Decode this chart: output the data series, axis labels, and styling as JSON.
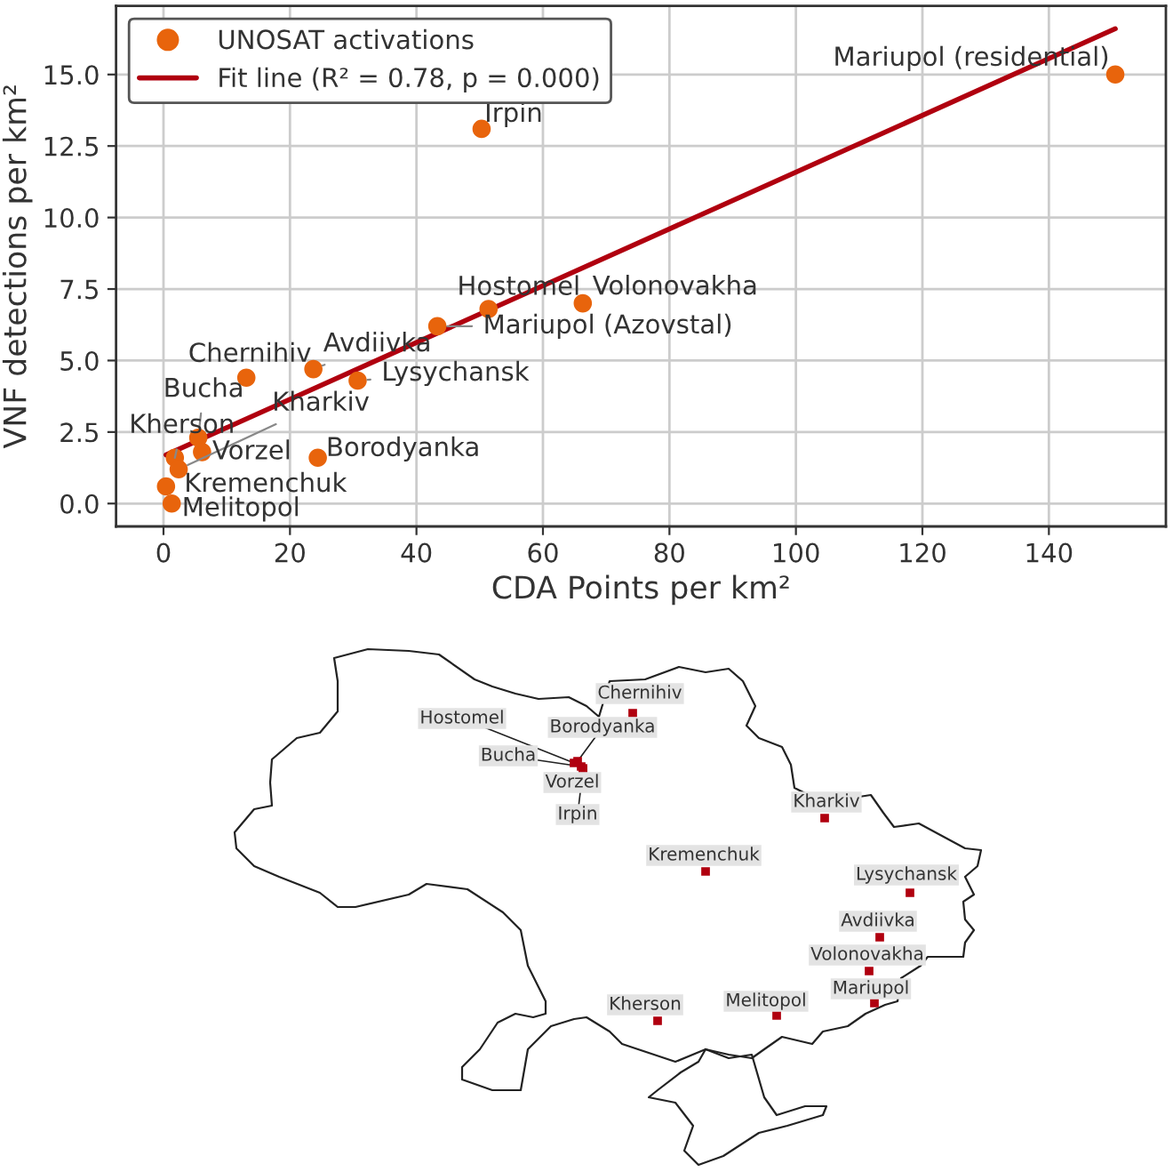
{
  "chart_data": [
    {
      "type": "scatter",
      "xlabel": "CDA Points per km²",
      "ylabel": "VNF detections per km²",
      "xlim": [
        -7.5,
        158.5
      ],
      "ylim": [
        -0.8,
        17.4
      ],
      "xticks": [
        0,
        20,
        40,
        60,
        80,
        100,
        120,
        140
      ],
      "yticks": [
        {
          "value": 0,
          "label": "0.0"
        },
        {
          "value": 2.5,
          "label": "2.5"
        },
        {
          "value": 5,
          "label": "5.0"
        },
        {
          "value": 7.5,
          "label": "7.5"
        },
        {
          "value": 10,
          "label": "10.0"
        },
        {
          "value": 12.5,
          "label": "12.5"
        },
        {
          "value": 15,
          "label": "15.0"
        }
      ],
      "grid": true,
      "legend": "top left",
      "series": [
        {
          "name": "UNOSAT activations",
          "type": "scatter",
          "marker": "circle",
          "color": "#e8640c",
          "x": [
            150.5,
            50.3,
            51.4,
            66.3,
            43.3,
            23.7,
            13.1,
            30.7,
            5.5,
            1.8,
            2.4,
            6.1,
            24.4,
            0.4,
            1.3
          ],
          "values": [
            15.0,
            13.1,
            6.8,
            7.0,
            6.2,
            4.7,
            4.4,
            4.3,
            2.3,
            1.6,
            1.2,
            1.8,
            1.6,
            0.6,
            0.0
          ]
        },
        {
          "name": "Fit line (R² = 0.78, p = 0.000)",
          "type": "line",
          "color": "#b0000f",
          "x": [
            0.4,
            150.5
          ],
          "values": [
            1.7,
            16.6
          ]
        }
      ],
      "annotations": [
        {
          "text": "Mariupol (residential)",
          "x": 150.5,
          "y": 15.0
        },
        {
          "text": "Irpin",
          "x": 50.3,
          "y": 13.1
        },
        {
          "text": "Hostomel",
          "x": 51.4,
          "y": 6.8
        },
        {
          "text": "Volonovakha",
          "x": 66.3,
          "y": 7.0
        },
        {
          "text": "Mariupol (Azovstal)",
          "x": 43.3,
          "y": 6.2
        },
        {
          "text": "Avdiivka",
          "x": 23.7,
          "y": 4.7
        },
        {
          "text": "Chernihiv",
          "x": 13.1,
          "y": 4.4
        },
        {
          "text": "Lysychansk",
          "x": 30.7,
          "y": 4.3
        },
        {
          "text": "Bucha",
          "x": 5.5,
          "y": 2.3
        },
        {
          "text": "Kherson",
          "x": 1.8,
          "y": 1.6
        },
        {
          "text": "Kharkiv",
          "x": 2.4,
          "y": 1.2
        },
        {
          "text": "Vorzel",
          "x": 6.1,
          "y": 1.8
        },
        {
          "text": "Borodyanka",
          "x": 24.4,
          "y": 1.6
        },
        {
          "text": "Kremenchuk",
          "x": 0.4,
          "y": 0.6
        },
        {
          "text": "Melitopol",
          "x": 1.3,
          "y": 0.0
        }
      ]
    },
    {
      "type": "other",
      "annotations": [
        "Chernihiv",
        "Hostomel",
        "Borodyanka",
        "Bucha",
        "Vorzel",
        "Irpin",
        "Kharkiv",
        "Kremenchuk",
        "Lysychansk",
        "Avdiivka",
        "Volonovakha",
        "Mariupol",
        "Kherson",
        "Melitopol"
      ]
    }
  ]
}
